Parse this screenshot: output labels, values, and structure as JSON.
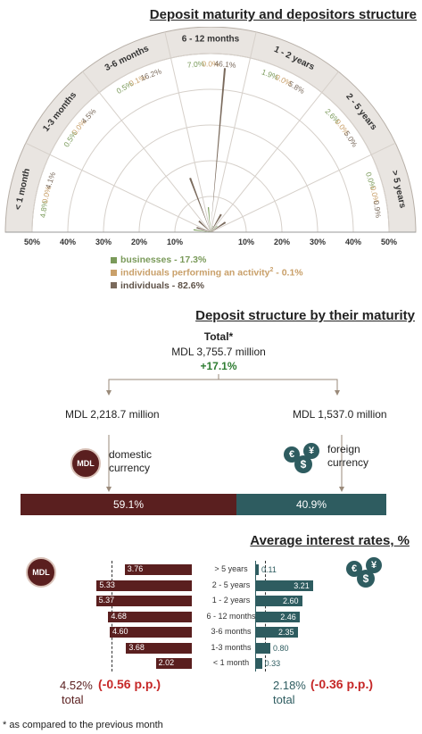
{
  "chart_data": [
    {
      "type": "radial-bar",
      "title": "Deposit maturity and depositors structure",
      "categories": [
        "< 1 month",
        "1-3 months",
        "3-6 months",
        "6 - 12 months",
        "1 - 2 years",
        "2 - 5 years",
        "> 5 years"
      ],
      "radial_ticks": [
        "50%",
        "40%",
        "30%",
        "20%",
        "10%",
        "10%",
        "20%",
        "30%",
        "40%",
        "50%"
      ],
      "series": [
        {
          "name": "businesses - 17.3%",
          "color": "#7a9a5a",
          "values": [
            4.8,
            0.5,
            0.5,
            7.0,
            1.9,
            2.6,
            0.0
          ]
        },
        {
          "name": "individuals performing an activity",
          "color": "#c9a06a",
          "values": [
            0.0,
            0.0,
            0.1,
            0.0,
            0.0,
            0.0,
            0.0
          ]
        },
        {
          "name": "individuals - 82.6%",
          "color": "#7a6a5c",
          "values": [
            4.1,
            4.5,
            16.2,
            46.1,
            5.8,
            5.0,
            0.9
          ]
        }
      ],
      "legend_superscript": "2",
      "legend_suffix": " - 0.1%"
    },
    {
      "type": "bar",
      "title": "Deposit structure by their maturity",
      "total_label": "Total*",
      "total_value": "MDL 3,755.7 million",
      "total_change": "+17.1%",
      "domestic_value": "MDL 2,218.7 million",
      "foreign_value": "MDL 1,537.0 million",
      "domestic_label": "domestic currency",
      "foreign_label": "foreign currency",
      "categories": [
        "domestic currency",
        "foreign currency"
      ],
      "values": [
        59.1,
        40.9
      ],
      "value_labels": [
        "59.1%",
        "40.9%"
      ]
    },
    {
      "type": "bar",
      "title": "Average interest rates, %",
      "categories": [
        "> 5 years",
        "2 - 5 years",
        "1 - 2 years",
        "6 - 12 months",
        "3-6 months",
        "1-3 months",
        "< 1 month"
      ],
      "series": [
        {
          "name": "MDL",
          "values": [
            3.76,
            5.33,
            5.37,
            4.68,
            4.6,
            3.68,
            2.02
          ]
        },
        {
          "name": "foreign",
          "values": [
            0.11,
            3.21,
            2.6,
            2.46,
            2.35,
            0.8,
            0.33
          ]
        }
      ],
      "mdl_total": "4.52%",
      "mdl_change": "(-0.56 p.p.)",
      "fc_total": "2.18%",
      "fc_change": "(-0.36 p.p.)",
      "total_word": "total"
    }
  ],
  "icons": {
    "mdl": "MDL",
    "currency_symbols": [
      "€",
      "$",
      "¥"
    ]
  },
  "colors": {
    "mdl": "#5a1f1f",
    "foreign": "#2e5c60",
    "green": "#2e7d32",
    "red": "#c62828"
  },
  "footnote": "* as compared to the previous month"
}
